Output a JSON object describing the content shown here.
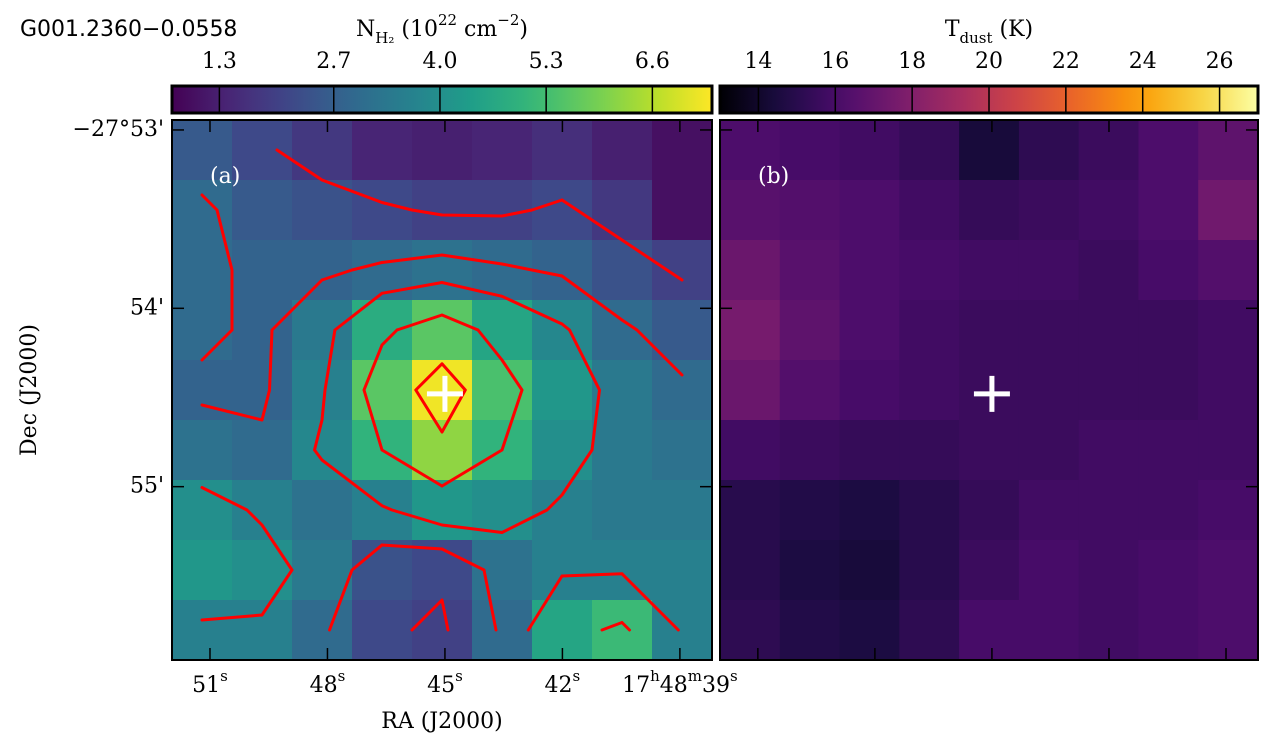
{
  "chart_data": [
    {
      "type": "heatmap",
      "title": "G001.2360−0.0558",
      "panel_label": "(a)",
      "colorbar_label": [
        {
          "text": "N"
        },
        {
          "text": "H₂",
          "style": "sub"
        },
        {
          "text": " (10"
        },
        {
          "text": "22",
          "style": "sup"
        },
        {
          "text": " cm"
        },
        {
          "text": "−2",
          "style": "sup"
        },
        {
          "text": ")"
        }
      ],
      "colormap": "viridis",
      "clim": [
        0.72,
        7.33
      ],
      "cticks": [
        1.3,
        2.7,
        {
          "value": 4,
          "label": "4.0"
        },
        5.3,
        6.6
      ],
      "xlabel": "RA (J2000)",
      "ylabel": "Dec (J2000)",
      "xlim": [
        51.97,
        38.18
      ],
      "ylim": [
        -27.8824,
        -27.93287
      ],
      "xticks": [
        {
          "value": 51,
          "label": [
            "51",
            "s"
          ]
        },
        {
          "value": 48,
          "label": [
            "48",
            "s"
          ]
        },
        {
          "value": 45,
          "label": [
            "45",
            "s"
          ]
        },
        {
          "value": 42,
          "label": [
            "42",
            "s"
          ]
        },
        {
          "value": 39,
          "label": [
            "17",
            "h",
            "48",
            "m",
            "39",
            "s"
          ]
        }
      ],
      "yticks": [
        {
          "value": -27.88333,
          "label": "−27°53'"
        },
        {
          "value": -27.9,
          "label": "54'"
        },
        {
          "value": -27.91667,
          "label": "55'"
        }
      ],
      "show_tick_labels": true,
      "values": [
        [
          2.6,
          2.2,
          1.8,
          1.4,
          1.3,
          1.4,
          1.6,
          1.3,
          1.0
        ],
        [
          3.0,
          2.6,
          2.4,
          2.2,
          2.0,
          2.0,
          2.2,
          1.8,
          1.0
        ],
        [
          3.0,
          2.8,
          2.8,
          3.0,
          3.2,
          3.0,
          2.8,
          2.4,
          2.0
        ],
        [
          3.0,
          2.8,
          3.4,
          4.8,
          5.6,
          4.6,
          3.8,
          3.0,
          2.6
        ],
        [
          2.8,
          2.8,
          3.6,
          5.6,
          7.2,
          5.4,
          4.2,
          3.4,
          3.0
        ],
        [
          3.2,
          3.0,
          3.8,
          5.0,
          6.2,
          5.0,
          4.0,
          3.4,
          3.2
        ],
        [
          4.0,
          3.6,
          3.2,
          3.6,
          4.2,
          4.0,
          3.6,
          3.4,
          3.4
        ],
        [
          4.2,
          4.0,
          3.4,
          2.4,
          2.2,
          3.2,
          3.6,
          3.6,
          3.6
        ],
        [
          3.6,
          3.6,
          3.0,
          2.2,
          2.0,
          3.0,
          4.6,
          5.2,
          3.6
        ]
      ],
      "contour_levels": [
        2.1,
        2.9,
        3.7,
        5.0,
        6.5
      ],
      "contour_color": "#ff0000",
      "marker": {
        "x": 45.0,
        "y": -27.908
      },
      "marker_color": "#ffffff"
    },
    {
      "type": "heatmap",
      "panel_label": "(b)",
      "colorbar_label": [
        {
          "text": "T"
        },
        {
          "text": "dust",
          "style": "sub"
        },
        {
          "text": " (K)"
        }
      ],
      "colormap": "inferno",
      "clim": [
        13,
        27
      ],
      "cticks": [
        14,
        16,
        18,
        20,
        22,
        24,
        26
      ],
      "xlim": [
        51.97,
        38.18
      ],
      "ylim": [
        -27.8824,
        -27.93287
      ],
      "xticks": [
        51,
        48,
        45,
        42,
        39
      ],
      "yticks": [
        -27.88333,
        -27.9,
        -27.91667
      ],
      "show_tick_labels": false,
      "values": [
        [
          16.2,
          16.0,
          15.8,
          15.4,
          14.4,
          15.2,
          15.6,
          16.2,
          16.8
        ],
        [
          16.6,
          16.4,
          16.2,
          15.8,
          15.4,
          15.6,
          15.8,
          16.2,
          17.4
        ],
        [
          17.2,
          16.6,
          16.2,
          16.0,
          15.8,
          15.8,
          15.6,
          16.0,
          16.4
        ],
        [
          17.6,
          16.8,
          16.2,
          15.8,
          15.6,
          15.6,
          15.6,
          15.6,
          15.8
        ],
        [
          17.2,
          16.4,
          16.0,
          15.8,
          15.6,
          15.6,
          15.6,
          15.6,
          15.8
        ],
        [
          15.8,
          15.6,
          15.4,
          15.4,
          15.6,
          15.6,
          15.8,
          15.8,
          15.8
        ],
        [
          15.0,
          14.8,
          14.6,
          15.0,
          15.4,
          15.8,
          15.8,
          15.8,
          16.0
        ],
        [
          15.0,
          14.6,
          14.4,
          15.0,
          15.6,
          16.0,
          15.8,
          16.0,
          16.2
        ],
        [
          15.2,
          14.8,
          14.6,
          15.2,
          16.0,
          16.0,
          15.8,
          16.0,
          16.2
        ]
      ],
      "marker": {
        "x": 45.0,
        "y": -27.908
      },
      "marker_color": "#ffffff"
    }
  ]
}
